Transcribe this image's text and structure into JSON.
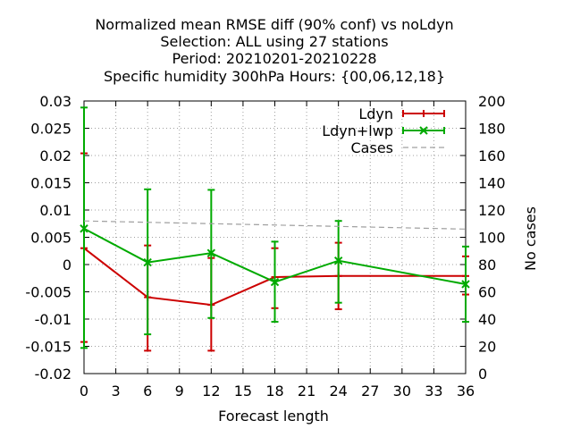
{
  "chart_data": {
    "type": "line",
    "title_lines": [
      "Normalized mean RMSE diff (90% conf) vs noLdyn",
      "Selection: ALL using    27 stations",
      "Period: 20210201-20210228",
      "Specific humidity 300hPa   Hours: {00,06,12,18}"
    ],
    "xlabel": "Forecast length",
    "ylabel": "",
    "y2label": "No cases",
    "xlim": [
      0,
      36
    ],
    "ylim": [
      -0.02,
      0.03
    ],
    "y2lim": [
      0,
      200
    ],
    "xticks": [
      "0",
      "3",
      "6",
      "9",
      "12",
      "15",
      "18",
      "21",
      "24",
      "27",
      "30",
      "33",
      "36"
    ],
    "xtick_values": [
      0,
      3,
      6,
      9,
      12,
      15,
      18,
      21,
      24,
      27,
      30,
      33,
      36
    ],
    "yticks": [
      "-0.02",
      "-0.015",
      "-0.01",
      "-0.005",
      "0",
      "0.005",
      "0.01",
      "0.015",
      "0.02",
      "0.025",
      "0.03"
    ],
    "ytick_values": [
      -0.02,
      -0.015,
      -0.01,
      -0.005,
      0,
      0.005,
      0.01,
      0.015,
      0.02,
      0.025,
      0.03
    ],
    "y2ticks": [
      "0",
      "20",
      "40",
      "60",
      "80",
      "100",
      "120",
      "140",
      "160",
      "180",
      "200"
    ],
    "y2tick_values": [
      0,
      20,
      40,
      60,
      80,
      100,
      120,
      140,
      160,
      180,
      200
    ],
    "grid": true,
    "legend_position": "top-right",
    "series": [
      {
        "name": "Ldyn",
        "color": "#cc0000",
        "marker": "plus",
        "axis": "y",
        "x": [
          0,
          6,
          12,
          18,
          24,
          36
        ],
        "values": [
          0.003,
          -0.006,
          -0.0074,
          -0.0023,
          -0.0021,
          -0.0021
        ],
        "err_low": [
          -0.0142,
          -0.0158,
          -0.0158,
          -0.008,
          -0.0082,
          -0.0055
        ],
        "err_high": [
          0.0204,
          0.0035,
          0.0012,
          0.003,
          0.004,
          0.0015
        ]
      },
      {
        "name": "Ldyn+lwp",
        "color": "#00aa00",
        "marker": "x",
        "axis": "y",
        "x": [
          0,
          6,
          12,
          18,
          24,
          36
        ],
        "values": [
          0.0066,
          0.0004,
          0.0021,
          -0.0032,
          0.0007,
          -0.0036
        ],
        "err_low": [
          -0.0153,
          -0.0128,
          -0.0098,
          -0.0105,
          -0.007,
          -0.0105
        ],
        "err_high": [
          0.0288,
          0.0138,
          0.0137,
          0.0042,
          0.008,
          0.0033
        ]
      },
      {
        "name": "Cases",
        "color": "#a0a0a0",
        "dash": true,
        "axis": "y2",
        "x": [
          0,
          6,
          12,
          18,
          24,
          36
        ],
        "values": [
          112,
          111,
          110,
          109,
          108,
          106
        ]
      }
    ]
  }
}
